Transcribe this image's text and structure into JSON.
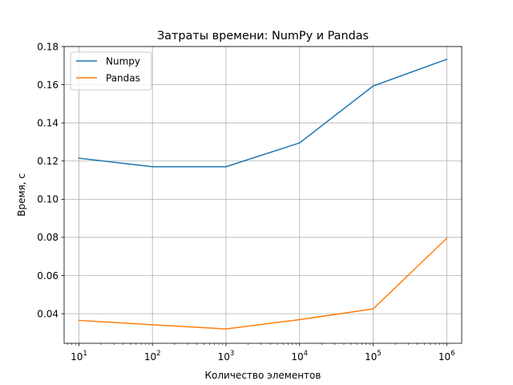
{
  "chart_data": {
    "type": "line",
    "title": "Затраты времени: NumPy и Pandas",
    "xlabel": "Количество элементов",
    "ylabel": "Время, с",
    "x_scale": "log",
    "x": [
      10,
      100,
      1000,
      10000,
      100000,
      1000000
    ],
    "x_tick_labels": [
      {
        "base": "10",
        "exp": "1"
      },
      {
        "base": "10",
        "exp": "2"
      },
      {
        "base": "10",
        "exp": "3"
      },
      {
        "base": "10",
        "exp": "4"
      },
      {
        "base": "10",
        "exp": "5"
      },
      {
        "base": "10",
        "exp": "6"
      }
    ],
    "xlim": [
      6.3,
      1600000
    ],
    "ylim": [
      0.0245,
      0.18
    ],
    "y_ticks": [
      0.04,
      0.06,
      0.08,
      0.1,
      0.12,
      0.14,
      0.16,
      0.18
    ],
    "y_tick_labels": [
      "0.04",
      "0.06",
      "0.08",
      "0.10",
      "0.12",
      "0.14",
      "0.16",
      "0.18"
    ],
    "grid": true,
    "legend_position": "top-left",
    "series": [
      {
        "name": "Numpy",
        "color": "#1f77b4",
        "values": [
          0.1215,
          0.117,
          0.117,
          0.1295,
          0.1593,
          0.1733
        ]
      },
      {
        "name": "Pandas",
        "color": "#ff7f0e",
        "values": [
          0.0365,
          0.0342,
          0.032,
          0.0369,
          0.0425,
          0.0795
        ]
      }
    ]
  }
}
